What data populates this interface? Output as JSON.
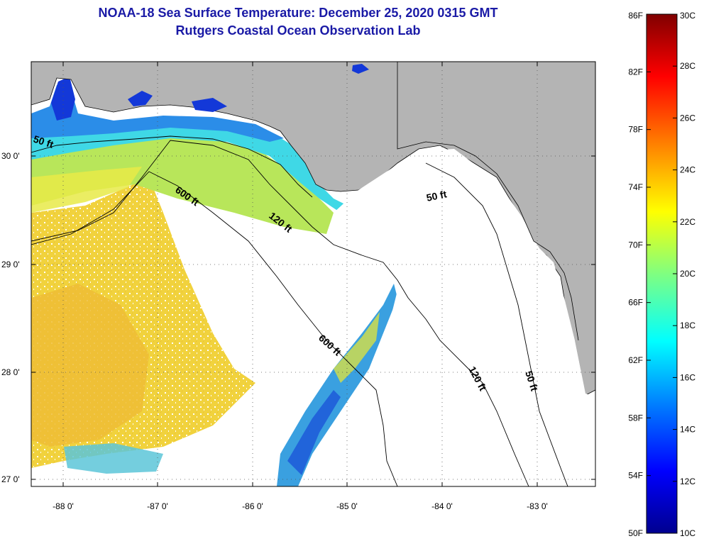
{
  "title": "NOAA-18 Sea Surface Temperature:  December 25, 2020 0315 GMT",
  "subtitle": "Rutgers Coastal Ocean Observation Lab",
  "map": {
    "lon_ticks": [
      "-88 0'",
      "-87 0'",
      "-86 0'",
      "-85 0'",
      "-84 0'",
      "-83 0'"
    ],
    "lat_ticks": [
      "30 0'",
      "29 0'",
      "28 0'",
      "27 0'"
    ],
    "contour_labels": [
      "50 ft",
      "600 ft",
      "120 ft",
      "50 ft",
      "600 ft",
      "120 ft",
      "50 ft"
    ],
    "colors": {
      "land": "#b4b4b4",
      "cloud": "#ffffff",
      "isobath": "#000000"
    }
  },
  "colorbar": {
    "fahrenheit": [
      "86F",
      "82F",
      "78F",
      "74F",
      "70F",
      "66F",
      "62F",
      "58F",
      "54F",
      "50F"
    ],
    "celsius": [
      "30C",
      "28C",
      "26C",
      "24C",
      "22C",
      "20C",
      "18C",
      "16C",
      "14C",
      "12C",
      "10C"
    ],
    "colormap": [
      "#00008f",
      "#0000ff",
      "#0080ff",
      "#00ffff",
      "#80ff80",
      "#ffff00",
      "#ff8000",
      "#ff0000",
      "#800000"
    ]
  }
}
